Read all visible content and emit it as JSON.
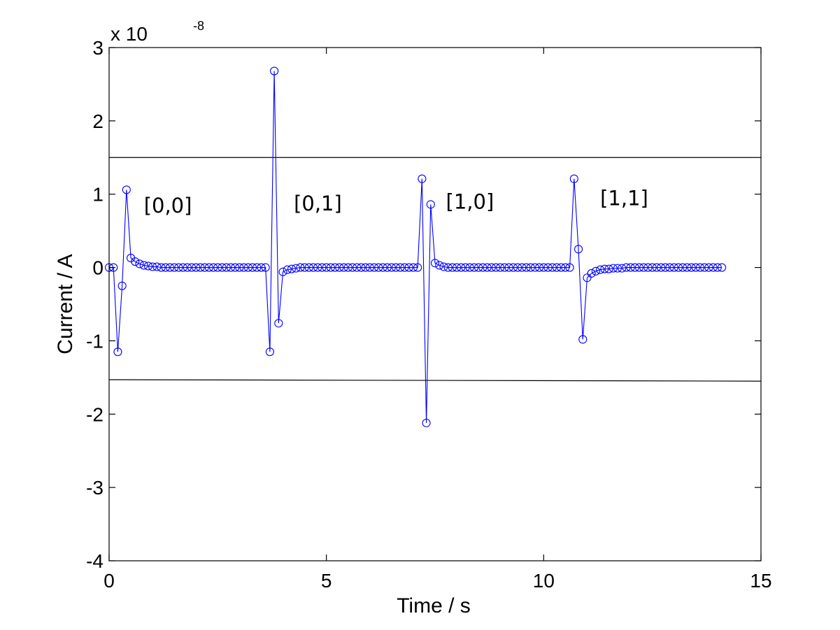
{
  "chart_data": {
    "type": "line",
    "xlabel": "Time / s",
    "ylabel": "Current / A",
    "y_exponent_base": "x 10",
    "y_exponent_power": "-8",
    "xlim": [
      0,
      15
    ],
    "ylim": [
      -4,
      3
    ],
    "x_ticks": [
      0,
      5,
      10,
      15
    ],
    "x_tick_labels": [
      "0",
      "5",
      "10",
      "15"
    ],
    "y_ticks": [
      -4,
      -3,
      -2,
      -1,
      0,
      1,
      2,
      3
    ],
    "y_tick_labels": [
      "-4",
      "-3",
      "-2",
      "-1",
      "0",
      "1",
      "2",
      "3"
    ],
    "grid": false,
    "series_color": "#0000ff",
    "threshold_color": "#000000",
    "thresholds": [
      {
        "x": [
          0,
          15
        ],
        "y": [
          1.5,
          1.5
        ]
      },
      {
        "x": [
          0,
          15
        ],
        "y": [
          -1.53,
          -1.55
        ]
      }
    ],
    "annotations": [
      {
        "text": "[0,0]",
        "x": 0.8,
        "y": 0.75
      },
      {
        "text": "[0,1]",
        "x": 4.25,
        "y": 0.78
      },
      {
        "text": "[1,0]",
        "x": 7.75,
        "y": 0.8
      },
      {
        "text": "[1,1]",
        "x": 11.3,
        "y": 0.85
      }
    ],
    "series": [
      {
        "marker": "circle",
        "values": [
          [
            0.0,
            0.0
          ],
          [
            0.1,
            0.0
          ],
          [
            0.2,
            -1.15
          ],
          [
            0.3,
            -0.25
          ],
          [
            0.4,
            1.06
          ],
          [
            0.5,
            0.13
          ],
          [
            0.6,
            0.08
          ],
          [
            0.7,
            0.05
          ],
          [
            0.8,
            0.03
          ],
          [
            0.9,
            0.02
          ],
          [
            1.0,
            0.01
          ],
          [
            1.1,
            0.01
          ],
          [
            1.2,
            0.0
          ],
          [
            1.3,
            0.0
          ],
          [
            1.4,
            0.0
          ],
          [
            1.5,
            0.0
          ],
          [
            1.6,
            0.0
          ],
          [
            1.7,
            0.0
          ],
          [
            1.8,
            0.0
          ],
          [
            1.9,
            0.0
          ],
          [
            2.0,
            0.0
          ],
          [
            2.1,
            0.0
          ],
          [
            2.2,
            0.0
          ],
          [
            2.3,
            0.0
          ],
          [
            2.4,
            0.0
          ],
          [
            2.5,
            0.0
          ],
          [
            2.6,
            0.0
          ],
          [
            2.7,
            0.0
          ],
          [
            2.8,
            0.0
          ],
          [
            2.9,
            0.0
          ],
          [
            3.0,
            0.0
          ],
          [
            3.1,
            0.0
          ],
          [
            3.2,
            0.0
          ],
          [
            3.3,
            0.0
          ],
          [
            3.4,
            0.0
          ],
          [
            3.5,
            0.0
          ],
          [
            3.6,
            0.0
          ],
          [
            3.7,
            -1.15
          ],
          [
            3.8,
            2.68
          ],
          [
            3.9,
            -0.76
          ],
          [
            4.0,
            -0.06
          ],
          [
            4.1,
            -0.03
          ],
          [
            4.2,
            -0.02
          ],
          [
            4.3,
            -0.01
          ],
          [
            4.4,
            0.0
          ],
          [
            4.5,
            0.0
          ],
          [
            4.6,
            0.0
          ],
          [
            4.7,
            0.0
          ],
          [
            4.8,
            0.0
          ],
          [
            4.9,
            0.0
          ],
          [
            5.0,
            0.0
          ],
          [
            5.1,
            0.0
          ],
          [
            5.2,
            0.0
          ],
          [
            5.3,
            0.0
          ],
          [
            5.4,
            0.0
          ],
          [
            5.5,
            0.0
          ],
          [
            5.6,
            0.0
          ],
          [
            5.7,
            0.0
          ],
          [
            5.8,
            0.0
          ],
          [
            5.9,
            0.0
          ],
          [
            6.0,
            0.0
          ],
          [
            6.1,
            0.0
          ],
          [
            6.2,
            0.0
          ],
          [
            6.3,
            0.0
          ],
          [
            6.4,
            0.0
          ],
          [
            6.5,
            0.0
          ],
          [
            6.6,
            0.0
          ],
          [
            6.7,
            0.0
          ],
          [
            6.8,
            0.0
          ],
          [
            6.9,
            0.0
          ],
          [
            7.0,
            0.0
          ],
          [
            7.1,
            0.0
          ],
          [
            7.2,
            1.21
          ],
          [
            7.3,
            -2.12
          ],
          [
            7.4,
            0.86
          ],
          [
            7.5,
            0.06
          ],
          [
            7.6,
            0.03
          ],
          [
            7.7,
            0.01
          ],
          [
            7.8,
            0.0
          ],
          [
            7.9,
            0.0
          ],
          [
            8.0,
            0.0
          ],
          [
            8.1,
            0.0
          ],
          [
            8.2,
            0.0
          ],
          [
            8.3,
            0.0
          ],
          [
            8.4,
            0.0
          ],
          [
            8.5,
            0.0
          ],
          [
            8.6,
            0.0
          ],
          [
            8.7,
            0.0
          ],
          [
            8.8,
            0.0
          ],
          [
            8.9,
            0.0
          ],
          [
            9.0,
            0.0
          ],
          [
            9.1,
            0.0
          ],
          [
            9.2,
            0.0
          ],
          [
            9.3,
            0.0
          ],
          [
            9.4,
            0.0
          ],
          [
            9.5,
            0.0
          ],
          [
            9.6,
            0.0
          ],
          [
            9.7,
            0.0
          ],
          [
            9.8,
            0.0
          ],
          [
            9.9,
            0.0
          ],
          [
            10.0,
            0.0
          ],
          [
            10.1,
            0.0
          ],
          [
            10.2,
            0.0
          ],
          [
            10.3,
            0.0
          ],
          [
            10.4,
            0.0
          ],
          [
            10.5,
            0.0
          ],
          [
            10.6,
            0.0
          ],
          [
            10.7,
            1.21
          ],
          [
            10.8,
            0.25
          ],
          [
            10.9,
            -0.98
          ],
          [
            11.0,
            -0.14
          ],
          [
            11.1,
            -0.08
          ],
          [
            11.2,
            -0.05
          ],
          [
            11.3,
            -0.03
          ],
          [
            11.4,
            -0.02
          ],
          [
            11.5,
            -0.02
          ],
          [
            11.6,
            -0.01
          ],
          [
            11.7,
            -0.01
          ],
          [
            11.8,
            -0.01
          ],
          [
            11.9,
            0.0
          ],
          [
            12.0,
            0.0
          ],
          [
            12.1,
            0.0
          ],
          [
            12.2,
            0.0
          ],
          [
            12.3,
            0.0
          ],
          [
            12.4,
            0.0
          ],
          [
            12.5,
            0.0
          ],
          [
            12.6,
            0.0
          ],
          [
            12.7,
            0.0
          ],
          [
            12.8,
            0.0
          ],
          [
            12.9,
            0.0
          ],
          [
            13.0,
            0.0
          ],
          [
            13.1,
            0.0
          ],
          [
            13.2,
            0.0
          ],
          [
            13.3,
            0.0
          ],
          [
            13.4,
            0.0
          ],
          [
            13.5,
            0.0
          ],
          [
            13.6,
            0.0
          ],
          [
            13.7,
            0.0
          ],
          [
            13.8,
            0.0
          ],
          [
            13.9,
            0.0
          ],
          [
            14.0,
            0.0
          ],
          [
            14.1,
            0.0
          ]
        ]
      }
    ]
  }
}
